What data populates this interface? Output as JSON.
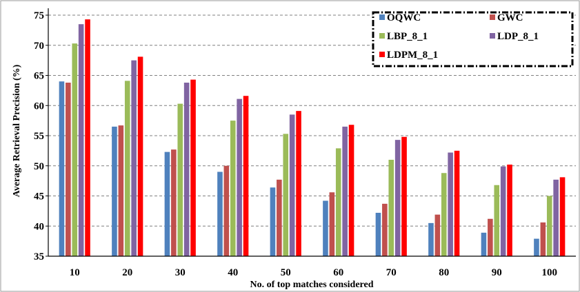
{
  "chart_data": {
    "type": "bar",
    "xlabel": "No. of top matches considered",
    "ylabel": "Average Retrieval Precision (%)",
    "ylim": [
      35,
      75
    ],
    "yticks": [
      "35",
      "40",
      "45",
      "50",
      "55",
      "60",
      "65",
      "70",
      "75"
    ],
    "categories": [
      "10",
      "20",
      "30",
      "40",
      "50",
      "60",
      "70",
      "80",
      "90",
      "100"
    ],
    "grid": "horizontal dashed",
    "legend_position": "top-right",
    "series": [
      {
        "name": "OQWC",
        "color": "#4F81BD",
        "values": [
          64.0,
          56.5,
          52.3,
          49.0,
          46.4,
          44.2,
          42.2,
          40.5,
          38.9,
          37.9
        ]
      },
      {
        "name": "GWC",
        "color": "#C0504D",
        "values": [
          63.8,
          56.7,
          52.7,
          50.0,
          47.7,
          45.6,
          43.7,
          41.9,
          41.2,
          40.6
        ]
      },
      {
        "name": "LBP_8_1",
        "color": "#9BBB59",
        "values": [
          70.3,
          64.1,
          60.3,
          57.5,
          55.3,
          52.9,
          51.0,
          48.8,
          46.8,
          45.0
        ]
      },
      {
        "name": "LDP_8_1",
        "color": "#8064A2",
        "values": [
          73.5,
          67.5,
          63.8,
          61.1,
          58.5,
          56.5,
          54.3,
          52.2,
          49.9,
          47.7
        ]
      },
      {
        "name": "LDPM_8_1",
        "color": "#FF0000",
        "values": [
          74.3,
          68.1,
          64.3,
          61.6,
          59.1,
          56.8,
          54.8,
          52.5,
          50.2,
          48.1
        ]
      }
    ]
  }
}
